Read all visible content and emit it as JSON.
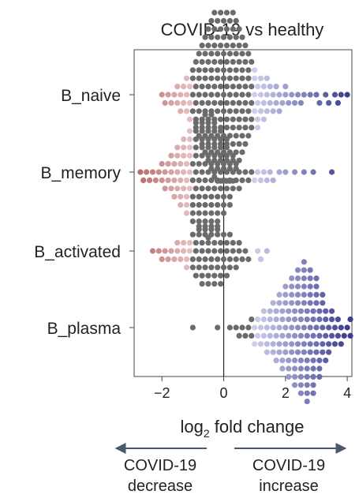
{
  "chart_data": {
    "type": "scatter",
    "subtype": "beeswarm",
    "title": "COVID-19 vs healthy",
    "xlabel_main": "log",
    "xlabel_sub": "2",
    "xlabel_rest": " fold change",
    "xlim": [
      -2.9,
      4.15
    ],
    "xticks": [
      -2,
      0,
      2,
      4
    ],
    "xtick_labels": [
      "−2",
      "0",
      "2",
      "4"
    ],
    "reference_line_x": 0,
    "colors": {
      "decrease_strong": "#b76f6f",
      "decrease_light": "#e8c4c4",
      "neutral": "#6b6b6b",
      "increase_light": "#d3d3ee",
      "increase_strong": "#3c3f8f"
    },
    "color_scale_range": [
      -2.7,
      4.0
    ],
    "neutral_band": [
      -1.0,
      0.9
    ],
    "categories": [
      "B_naive",
      "B_memory",
      "B_activated",
      "B_plasma"
    ],
    "series": [
      {
        "name": "B_naive",
        "x": [
          -2.0,
          -1.9,
          -1.8,
          -1.7,
          -1.6,
          -1.5,
          -1.5,
          -1.4,
          -1.4,
          -1.3,
          -1.3,
          -1.2,
          -1.2,
          -1.2,
          -1.1,
          -1.1,
          -1.1,
          -1.0,
          -1.0,
          -1.0,
          -1.0,
          -0.9,
          -0.9,
          -0.9,
          -0.9,
          -0.9,
          -0.8,
          -0.8,
          -0.8,
          -0.8,
          -0.8,
          -0.8,
          -0.7,
          -0.7,
          -0.7,
          -0.7,
          -0.7,
          -0.7,
          -0.7,
          -0.6,
          -0.6,
          -0.6,
          -0.6,
          -0.6,
          -0.6,
          -0.6,
          -0.6,
          -0.5,
          -0.5,
          -0.5,
          -0.5,
          -0.5,
          -0.5,
          -0.5,
          -0.5,
          -0.5,
          -0.4,
          -0.4,
          -0.4,
          -0.4,
          -0.4,
          -0.4,
          -0.4,
          -0.4,
          -0.4,
          -0.4,
          -0.3,
          -0.3,
          -0.3,
          -0.3,
          -0.3,
          -0.3,
          -0.3,
          -0.3,
          -0.3,
          -0.3,
          -0.3,
          -0.2,
          -0.2,
          -0.2,
          -0.2,
          -0.2,
          -0.2,
          -0.2,
          -0.2,
          -0.2,
          -0.2,
          -0.2,
          -0.2,
          -0.1,
          -0.1,
          -0.1,
          -0.1,
          -0.1,
          -0.1,
          -0.1,
          -0.1,
          -0.1,
          -0.1,
          -0.1,
          -0.1,
          0.0,
          0.0,
          0.0,
          0.0,
          0.0,
          0.0,
          0.0,
          0.0,
          0.0,
          0.0,
          0.0,
          0.0,
          0.0,
          0.1,
          0.1,
          0.1,
          0.1,
          0.1,
          0.1,
          0.1,
          0.1,
          0.1,
          0.1,
          0.1,
          0.1,
          0.1,
          0.2,
          0.2,
          0.2,
          0.2,
          0.2,
          0.2,
          0.2,
          0.2,
          0.2,
          0.2,
          0.2,
          0.2,
          0.3,
          0.3,
          0.3,
          0.3,
          0.3,
          0.3,
          0.3,
          0.3,
          0.3,
          0.3,
          0.3,
          0.4,
          0.4,
          0.4,
          0.4,
          0.4,
          0.4,
          0.4,
          0.4,
          0.4,
          0.4,
          0.5,
          0.5,
          0.5,
          0.5,
          0.5,
          0.5,
          0.5,
          0.5,
          0.5,
          0.6,
          0.6,
          0.6,
          0.6,
          0.6,
          0.6,
          0.6,
          0.6,
          0.7,
          0.7,
          0.7,
          0.7,
          0.7,
          0.7,
          0.7,
          0.8,
          0.8,
          0.8,
          0.8,
          0.8,
          0.8,
          0.9,
          0.9,
          0.9,
          0.9,
          0.9,
          1.0,
          1.0,
          1.0,
          1.0,
          1.1,
          1.1,
          1.1,
          1.1,
          1.2,
          1.2,
          1.2,
          1.3,
          1.3,
          1.3,
          1.4,
          1.4,
          1.4,
          1.5,
          1.5,
          1.6,
          1.6,
          1.7,
          1.7,
          1.8,
          1.8,
          1.9,
          2.0,
          2.0,
          2.1,
          2.2,
          2.3,
          2.4,
          2.5,
          2.6,
          2.8,
          3.0,
          3.1,
          3.3,
          3.4,
          3.6,
          3.7,
          3.8,
          4.0
        ]
      },
      {
        "name": "B_memory",
        "x": [
          -2.7,
          -2.6,
          -2.5,
          -2.4,
          -2.3,
          -2.2,
          -2.1,
          -2.0,
          -2.0,
          -1.9,
          -1.9,
          -1.8,
          -1.8,
          -1.7,
          -1.7,
          -1.7,
          -1.6,
          -1.6,
          -1.6,
          -1.5,
          -1.5,
          -1.5,
          -1.5,
          -1.4,
          -1.4,
          -1.4,
          -1.4,
          -1.3,
          -1.3,
          -1.3,
          -1.3,
          -1.3,
          -1.2,
          -1.2,
          -1.2,
          -1.2,
          -1.2,
          -1.1,
          -1.1,
          -1.1,
          -1.1,
          -1.1,
          -1.1,
          -1.0,
          -1.0,
          -1.0,
          -1.0,
          -1.0,
          -1.0,
          -0.9,
          -0.9,
          -0.9,
          -0.9,
          -0.9,
          -0.9,
          -0.9,
          -0.8,
          -0.8,
          -0.8,
          -0.8,
          -0.8,
          -0.8,
          -0.8,
          -0.7,
          -0.7,
          -0.7,
          -0.7,
          -0.7,
          -0.7,
          -0.7,
          -0.6,
          -0.6,
          -0.6,
          -0.6,
          -0.6,
          -0.6,
          -0.6,
          -0.6,
          -0.5,
          -0.5,
          -0.5,
          -0.5,
          -0.5,
          -0.5,
          -0.5,
          -0.5,
          -0.4,
          -0.4,
          -0.4,
          -0.4,
          -0.4,
          -0.4,
          -0.4,
          -0.4,
          -0.3,
          -0.3,
          -0.3,
          -0.3,
          -0.3,
          -0.3,
          -0.3,
          -0.2,
          -0.2,
          -0.2,
          -0.2,
          -0.2,
          -0.2,
          -0.2,
          -0.1,
          -0.1,
          -0.1,
          -0.1,
          -0.1,
          -0.1,
          0.0,
          0.0,
          0.0,
          0.0,
          0.0,
          0.1,
          0.1,
          0.1,
          0.1,
          0.1,
          0.2,
          0.2,
          0.2,
          0.2,
          0.3,
          0.3,
          0.3,
          0.4,
          0.4,
          0.5,
          0.5,
          0.6,
          0.7,
          0.8,
          0.9,
          1.0,
          1.1,
          1.2,
          1.3,
          1.4,
          1.5,
          1.6,
          1.8,
          2.0,
          2.3,
          2.6,
          2.9,
          3.5
        ]
      },
      {
        "name": "B_activated",
        "x": [
          -2.3,
          -2.1,
          -2.0,
          -1.9,
          -1.8,
          -1.7,
          -1.6,
          -1.5,
          -1.5,
          -1.4,
          -1.3,
          -1.3,
          -1.2,
          -1.2,
          -1.1,
          -1.1,
          -1.0,
          -1.0,
          -1.0,
          -0.9,
          -0.9,
          -0.9,
          -0.8,
          -0.8,
          -0.8,
          -0.8,
          -0.7,
          -0.7,
          -0.7,
          -0.7,
          -0.6,
          -0.6,
          -0.6,
          -0.6,
          -0.5,
          -0.5,
          -0.5,
          -0.5,
          -0.4,
          -0.4,
          -0.4,
          -0.4,
          -0.3,
          -0.3,
          -0.3,
          -0.3,
          -0.2,
          -0.2,
          -0.2,
          -0.2,
          -0.1,
          -0.1,
          -0.1,
          -0.1,
          0.0,
          0.0,
          0.0,
          0.1,
          0.1,
          0.1,
          0.2,
          0.2,
          0.2,
          0.3,
          0.3,
          0.4,
          0.4,
          0.5,
          0.5,
          0.6,
          0.7,
          0.8,
          1.1,
          1.2,
          1.4
        ]
      },
      {
        "name": "B_plasma",
        "x": [
          -1.0,
          -0.2,
          0.2,
          0.4,
          0.5,
          0.6,
          0.7,
          0.8,
          0.9,
          0.9,
          1.0,
          1.0,
          1.1,
          1.1,
          1.2,
          1.2,
          1.3,
          1.3,
          1.3,
          1.4,
          1.4,
          1.4,
          1.5,
          1.5,
          1.5,
          1.6,
          1.6,
          1.6,
          1.6,
          1.7,
          1.7,
          1.7,
          1.7,
          1.8,
          1.8,
          1.8,
          1.8,
          1.8,
          1.9,
          1.9,
          1.9,
          1.9,
          1.9,
          2.0,
          2.0,
          2.0,
          2.0,
          2.0,
          2.0,
          2.1,
          2.1,
          2.1,
          2.1,
          2.1,
          2.1,
          2.2,
          2.2,
          2.2,
          2.2,
          2.2,
          2.2,
          2.2,
          2.3,
          2.3,
          2.3,
          2.3,
          2.3,
          2.3,
          2.3,
          2.4,
          2.4,
          2.4,
          2.4,
          2.4,
          2.4,
          2.4,
          2.4,
          2.5,
          2.5,
          2.5,
          2.5,
          2.5,
          2.5,
          2.5,
          2.5,
          2.6,
          2.6,
          2.6,
          2.6,
          2.6,
          2.6,
          2.6,
          2.6,
          2.6,
          2.7,
          2.7,
          2.7,
          2.7,
          2.7,
          2.7,
          2.7,
          2.7,
          2.7,
          2.8,
          2.8,
          2.8,
          2.8,
          2.8,
          2.8,
          2.8,
          2.8,
          2.9,
          2.9,
          2.9,
          2.9,
          2.9,
          2.9,
          2.9,
          2.9,
          3.0,
          3.0,
          3.0,
          3.0,
          3.0,
          3.0,
          3.0,
          3.1,
          3.1,
          3.1,
          3.1,
          3.1,
          3.1,
          3.2,
          3.2,
          3.2,
          3.2,
          3.2,
          3.3,
          3.3,
          3.3,
          3.3,
          3.4,
          3.4,
          3.4,
          3.5,
          3.5,
          3.5,
          3.6,
          3.6,
          3.7,
          3.7,
          3.8,
          3.8,
          3.9,
          4.0,
          4.1,
          4.1
        ]
      }
    ]
  },
  "annotations": {
    "left_label_line1": "COVID-19",
    "left_label_line2": "decrease",
    "right_label_line1": "COVID-19",
    "right_label_line2": "increase"
  }
}
